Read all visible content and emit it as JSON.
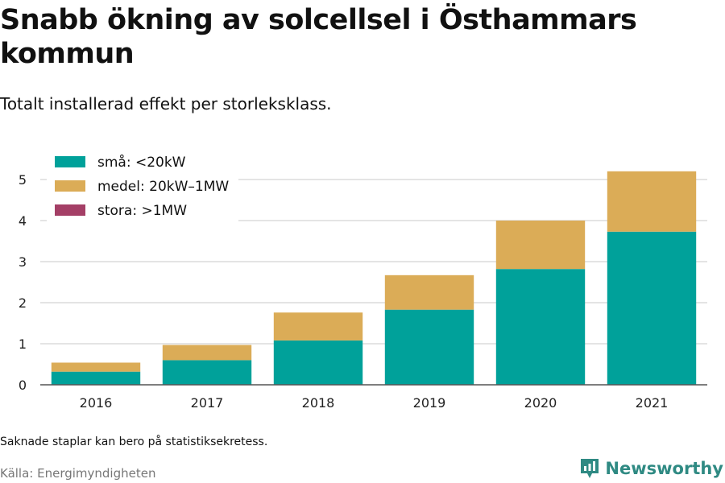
{
  "header": {
    "title": "Snabb ökning av solcellsel i Östhammars kommun",
    "subtitle": "Totalt installerad effekt per storleksklass."
  },
  "chart_data": {
    "type": "bar",
    "stacked": true,
    "categories": [
      "2016",
      "2017",
      "2018",
      "2019",
      "2020",
      "2021"
    ],
    "series": [
      {
        "name": "små: <20kW",
        "color": "#00a19a",
        "values": [
          0.32,
          0.6,
          1.08,
          1.83,
          2.82,
          3.73
        ]
      },
      {
        "name": "medel: 20kW–1MW",
        "color": "#dbac57",
        "values": [
          0.22,
          0.37,
          0.68,
          0.84,
          1.18,
          1.47
        ]
      },
      {
        "name": "stora: >1MW",
        "color": "#a43f66",
        "values": [
          0,
          0,
          0,
          0,
          0,
          0
        ]
      }
    ],
    "ylim": [
      0,
      5.2
    ],
    "yticks": [
      0,
      1,
      2,
      3,
      4,
      5
    ],
    "grid": true,
    "legend": "top-left"
  },
  "footer": {
    "note": "Saknade staplar kan bero på statistiksekretess.",
    "source": "Källa: Energimyndigheten",
    "brand": "Newsworthy"
  }
}
